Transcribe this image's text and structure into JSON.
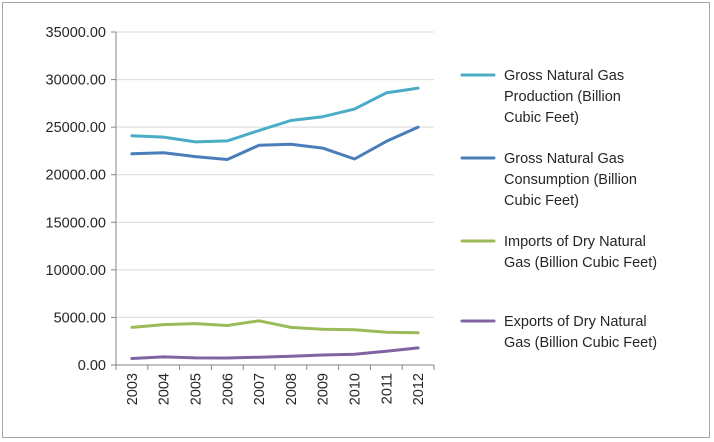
{
  "chart_data": {
    "type": "line",
    "title": "",
    "xlabel": "",
    "ylabel": "",
    "ylim": [
      0,
      35000
    ],
    "y_ticks": [
      "0.00",
      "5000.00",
      "10000.00",
      "15000.00",
      "20000.00",
      "25000.00",
      "30000.00",
      "35000.00"
    ],
    "y_tick_values": [
      0,
      5000,
      10000,
      15000,
      20000,
      25000,
      30000,
      35000
    ],
    "x": [
      "2003",
      "2004",
      "2005",
      "2006",
      "2007",
      "2008",
      "2009",
      "2010",
      "2011",
      "2012"
    ],
    "grid": "horizontal",
    "legend_position": "right",
    "series": [
      {
        "name": "Gross Natural Gas Production (Billion Cubic Feet)",
        "legend_lines": [
          "Gross Natural Gas",
          "Production (Billion",
          "Cubic Feet)"
        ],
        "color": "#4bacc6",
        "values": [
          24100,
          23950,
          23450,
          23550,
          24650,
          25700,
          26100,
          26900,
          28600,
          29100
        ]
      },
      {
        "name": "Gross Natural Gas Consumption (Billion Cubic Feet)",
        "legend_lines": [
          "Gross Natural Gas",
          "Consumption (Billion",
          "Cubic Feet)"
        ],
        "color": "#4a7ebb",
        "values": [
          22200,
          22300,
          21900,
          21600,
          23100,
          23200,
          22800,
          21650,
          23500,
          25000
        ]
      },
      {
        "name": "Imports of Dry Natural Gas (Billion Cubic Feet)",
        "legend_lines": [
          "Imports of Dry Natural",
          "Gas (Billion Cubic Feet)"
        ],
        "color": "#9bbb59",
        "values": [
          3950,
          4250,
          4350,
          4150,
          4650,
          3950,
          3750,
          3700,
          3450,
          3400
        ]
      },
      {
        "name": "Exports of Dry Natural Gas (Billion Cubic Feet)",
        "legend_lines": [
          "Exports of Dry Natural",
          "Gas (Billion Cubic Feet)"
        ],
        "color": "#8064a2",
        "values": [
          680,
          850,
          750,
          740,
          820,
          930,
          1050,
          1120,
          1450,
          1800
        ]
      }
    ]
  }
}
